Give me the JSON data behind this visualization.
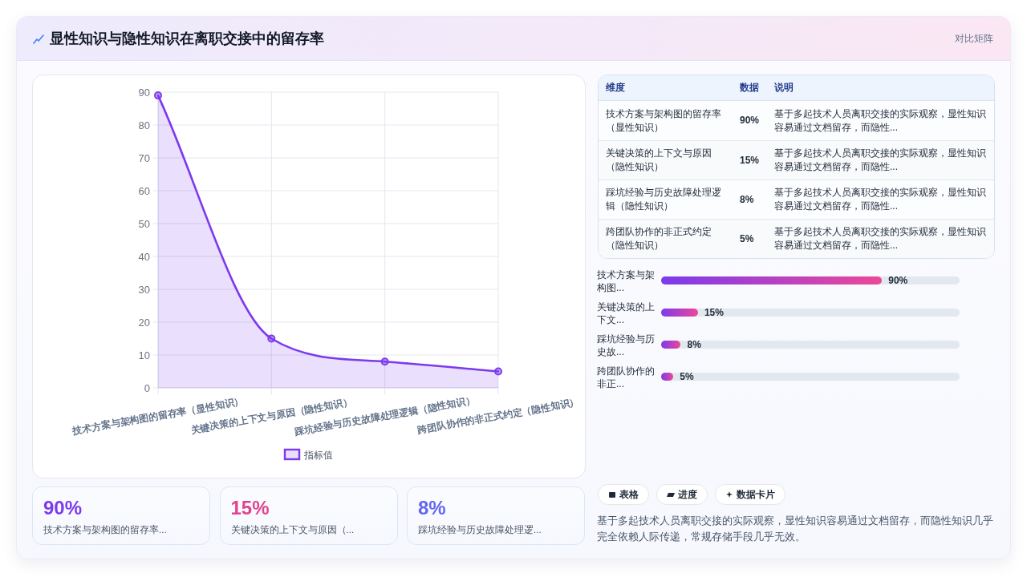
{
  "chart_data": [
    {
      "type": "other",
      "title": "显性知识与隐性知识在离职交接中的留存率",
      "subtitle": "对比矩阵"
    },
    {
      "type": "area",
      "categories": [
        "技术方案与架构图的留存率（显性知识）",
        "关键决策的上下文与原因（隐性知识）",
        "踩坑经验与历史故障处理逻辑（隐性知识）",
        "跨团队协作的非正式约定（隐性知识）"
      ],
      "series": [
        {
          "name": "指标值",
          "color": "#7c3aed",
          "values": [
            89,
            15,
            8,
            5
          ]
        }
      ],
      "ylim": [
        0,
        90
      ],
      "yticks": [
        0,
        10,
        20,
        30,
        40,
        50,
        60,
        70,
        80,
        90
      ],
      "grid": true,
      "legend": "bottom",
      "marker": "circle",
      "line_style": "solid"
    },
    {
      "type": "other",
      "categories": [
        "技术方案与架构图的留存率（显性知识）",
        "关键决策的上下文与原因（隐性知识）",
        "踩坑经验与历史故障处理逻辑（隐性知识）",
        "跨团队协作的非正式约定（隐性知识）"
      ],
      "value_labels": [
        "90%",
        "15%",
        "8%",
        "5%"
      ],
      "annotations": [
        "维度",
        "数据",
        "说明",
        "基于多起技术人员离职交接的实际观察，显性知识容易通过文档留存，而隐性...",
        "基于多起技术人员离职交接的实际观察，显性知识容易通过文档留存，而隐性...",
        "基于多起技术人员离职交接的实际观察，显性知识容易通过文档留存，而隐性...",
        "基于多起技术人员离职交接的实际观察，显性知识容易通过文档留存，而隐性..."
      ]
    },
    {
      "type": "bar",
      "orientation": "horizontal",
      "categories": [
        "技术方案与架构图...",
        "关键决策的上下文...",
        "踩坑经验与历史故...",
        "跨团队协作的非正..."
      ],
      "values": [
        90,
        15,
        8,
        5
      ],
      "value_labels": [
        "90%",
        "15%",
        "8%",
        "5%"
      ],
      "color": "#7c3aed"
    },
    {
      "type": "other",
      "categories": [
        "技术方案与架构图的留存率...",
        "关键决策的上下文与原因（...",
        "踩坑经验与历史故障处理逻..."
      ],
      "value_labels": [
        "90%",
        "15%",
        "8%"
      ]
    },
    {
      "type": "other",
      "categories": [
        "表格",
        "进度",
        "数据卡片"
      ],
      "annotations": [
        "基于多起技术人员离职交接的实际观察，显性知识容易通过文档留存，而隐性知识几乎完全依赖人际传递，常规存储手段几乎无效。"
      ]
    }
  ]
}
